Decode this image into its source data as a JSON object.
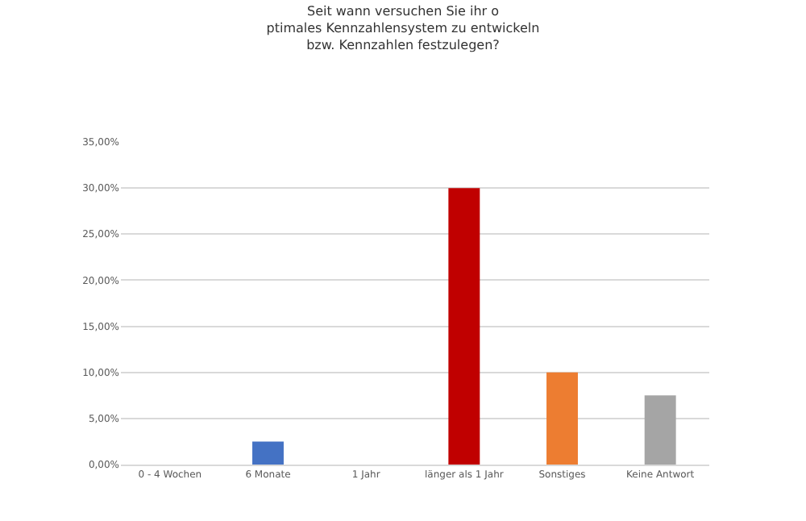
{
  "chart_data": {
    "type": "bar",
    "title": "Seit wann versuchen Sie ihr o\nptimales Kennzahlensystem zu entwickeln\nbzw. Kennzahlen festzulegen?",
    "categories": [
      "0 - 4 Wochen",
      "6 Monate",
      "1 Jahr",
      "länger als 1 Jahr",
      "Sonstiges",
      "Keine Antwort"
    ],
    "values": [
      0,
      2.5,
      0,
      30,
      10,
      7.5
    ],
    "colors": [
      "#4472c4",
      "#4472c4",
      "#4472c4",
      "#c00000",
      "#ed7d31",
      "#a5a5a5"
    ],
    "ylim": [
      0,
      35
    ],
    "yticks": [
      {
        "value": 0,
        "label": "0,00%"
      },
      {
        "value": 5,
        "label": "5,00%"
      },
      {
        "value": 10,
        "label": "10,00%"
      },
      {
        "value": 15,
        "label": "15,00%"
      },
      {
        "value": 20,
        "label": "20,00%"
      },
      {
        "value": 25,
        "label": "25,00%"
      },
      {
        "value": 30,
        "label": "30,00%"
      },
      {
        "value": 35,
        "label": "35,00%"
      }
    ],
    "grid": "y"
  }
}
